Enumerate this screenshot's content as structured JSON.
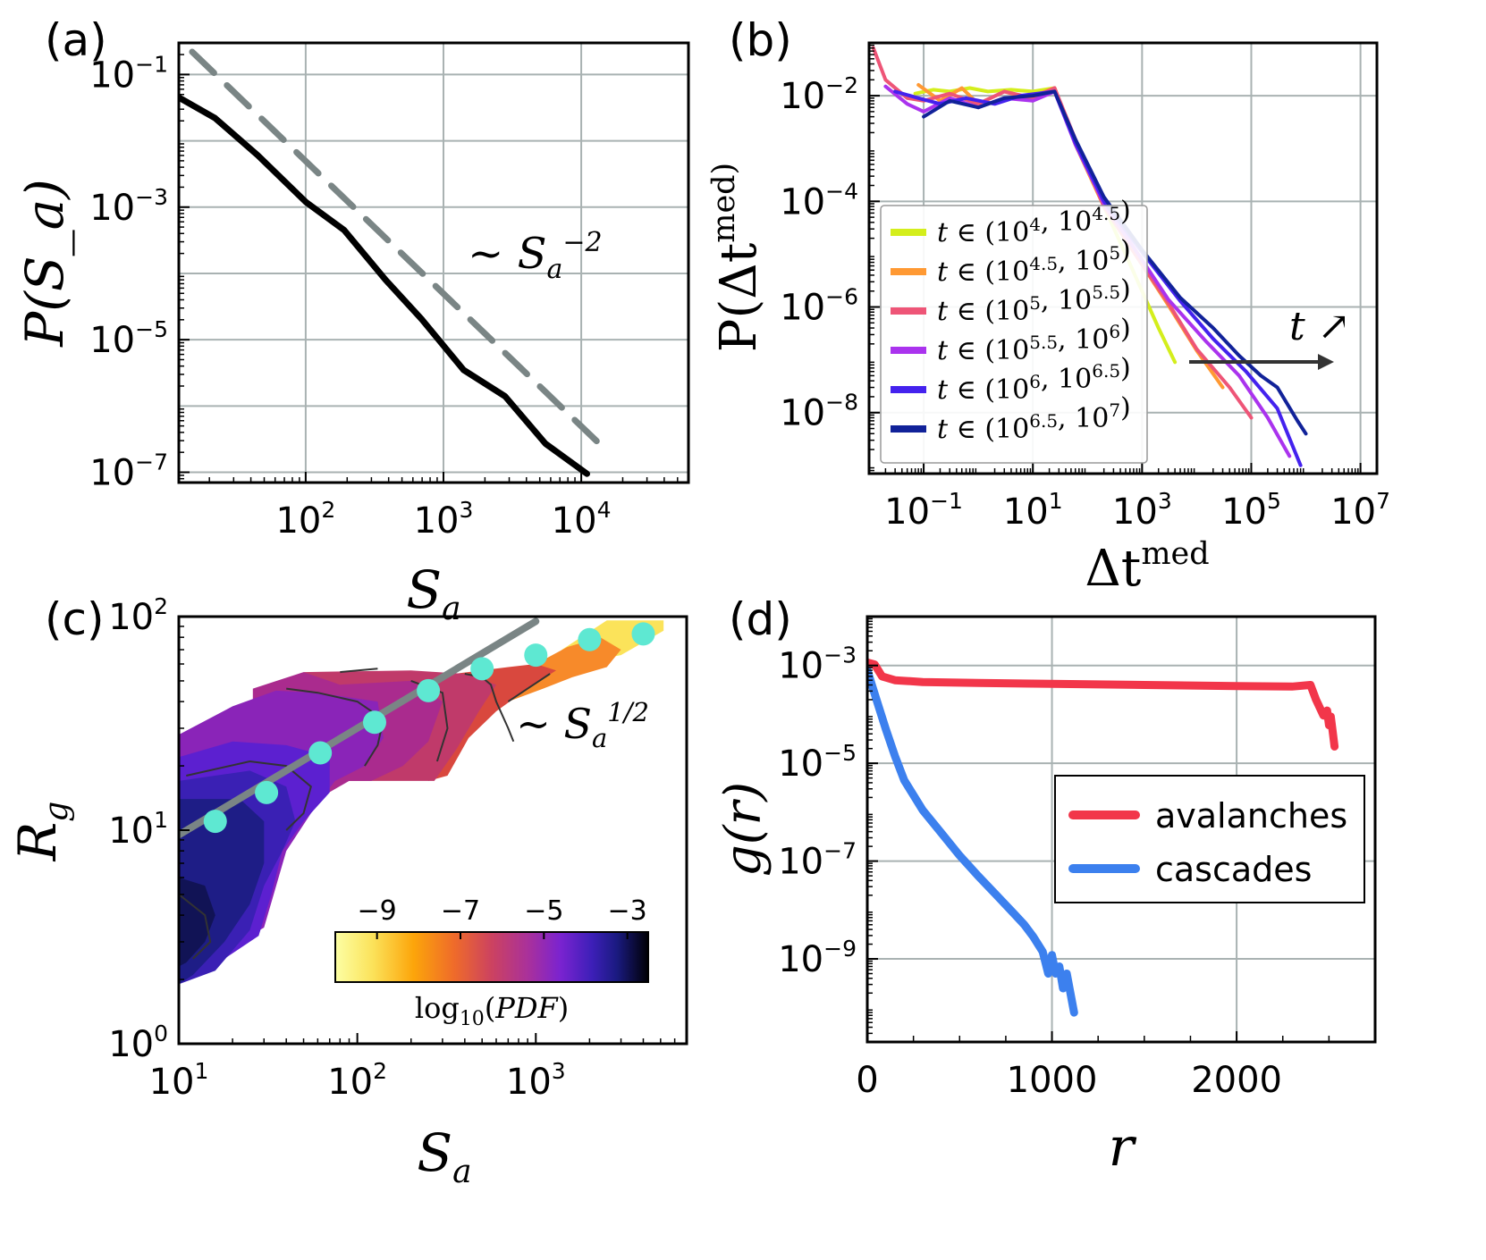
{
  "figure": {
    "panel_labels": [
      "(a)",
      "(b)",
      "(c)",
      "(d)"
    ]
  },
  "chart_data": [
    {
      "panel": "(a)",
      "type": "line",
      "scale": "log-log",
      "xlabel": "S_a",
      "ylabel": "P(S_a)",
      "xlim": [
        12,
        60000
      ],
      "ylim": [
        7e-08,
        0.3
      ],
      "xticks": [
        100,
        1000,
        10000
      ],
      "xtick_labels": [
        "10^2",
        "10^3",
        "10^4"
      ],
      "yticks": [
        0.1,
        0.001,
        1e-05,
        1e-07
      ],
      "ytick_labels": [
        "10^-1",
        "10^-3",
        "10^-5",
        "10^-7"
      ],
      "grid": true,
      "series": [
        {
          "name": "P(S_a)",
          "color": "#000000",
          "style": "solid",
          "x": [
            12,
            22,
            45,
            100,
            190,
            380,
            700,
            1400,
            2800,
            5500,
            11000
          ],
          "y": [
            0.045,
            0.022,
            0.006,
            0.0012,
            0.00045,
            8e-05,
            2e-05,
            3.5e-06,
            1.4e-06,
            2.7e-07,
            9.5e-08
          ]
        },
        {
          "name": "S_a^-2 guide",
          "color": "#7a8585",
          "style": "dashed",
          "x": [
            15,
            15000
          ],
          "y": [
            0.22,
            2.2e-07
          ]
        }
      ],
      "annotations": [
        {
          "text": "~ S_a^-2",
          "x": 1500,
          "y": 0.00012
        }
      ]
    },
    {
      "panel": "(b)",
      "type": "line",
      "scale": "log-log",
      "xlabel": "Δt^med",
      "ylabel": "P(Δt^med)",
      "xlim": [
        0.01,
        20000000
      ],
      "ylim": [
        7e-10,
        0.1
      ],
      "xticks": [
        0.1,
        10,
        1000,
        100000,
        10000000
      ],
      "xtick_labels": [
        "10^-1",
        "10^1",
        "10^3",
        "10^5",
        "10^7"
      ],
      "yticks": [
        0.01,
        0.0001,
        1e-06,
        1e-08
      ],
      "ytick_labels": [
        "10^-2",
        "10^-4",
        "10^-6",
        "10^-8"
      ],
      "grid": true,
      "legend": {
        "position": "center-left",
        "entries": [
          {
            "lo": "10^4",
            "hi": "10^4.5",
            "color": "#d4ee1c"
          },
          {
            "lo": "10^4.5",
            "hi": "10^5",
            "color": "#ff9933"
          },
          {
            "lo": "10^5",
            "hi": "10^5.5",
            "color": "#ee5577"
          },
          {
            "lo": "10^5.5",
            "hi": "10^6",
            "color": "#aa33ee"
          },
          {
            "lo": "10^6",
            "hi": "10^6.5",
            "color": "#4422ee"
          },
          {
            "lo": "10^6.5",
            "hi": "10^7",
            "color": "#112299"
          }
        ]
      },
      "series": [
        {
          "name": "t ∈ (10^4, 10^4.5)",
          "color": "#d4ee1c",
          "x": [
            0.07,
            0.15,
            0.3,
            0.7,
            1.5,
            4,
            10,
            25,
            60,
            200,
            600,
            2000,
            4000
          ],
          "y": [
            0.011,
            0.013,
            0.012,
            0.014,
            0.012,
            0.013,
            0.012,
            0.014,
            0.0012,
            8e-05,
            6.5e-06,
            4e-07,
            9e-08
          ]
        },
        {
          "name": "t ∈ (10^4.5, 10^5)",
          "color": "#ff9933",
          "x": [
            0.08,
            0.2,
            0.5,
            1,
            3,
            8,
            25,
            60,
            200,
            800,
            3000,
            10000,
            30000
          ],
          "y": [
            0.016,
            0.008,
            0.014,
            0.007,
            0.012,
            0.009,
            0.014,
            0.0012,
            8e-05,
            9e-06,
            1.1e-06,
            1.5e-07,
            3e-08
          ]
        },
        {
          "name": "t ∈ (10^5, 10^5.5)",
          "color": "#ee5577",
          "x": [
            0.012,
            0.02,
            0.05,
            0.1,
            0.3,
            1,
            3,
            10,
            25,
            60,
            200,
            800,
            3000,
            10000,
            40000,
            100000
          ],
          "y": [
            0.08,
            0.02,
            0.009,
            0.008,
            0.011,
            0.007,
            0.012,
            0.009,
            0.014,
            0.0015,
            8e-05,
            9e-06,
            1.2e-06,
            1.6e-07,
            3e-08,
            8e-09
          ]
        },
        {
          "name": "t ∈ (10^5.5, 10^6)",
          "color": "#aa33ee",
          "x": [
            0.02,
            0.05,
            0.1,
            0.3,
            1,
            3,
            10,
            25,
            60,
            200,
            800,
            3000,
            15000,
            60000,
            200000,
            500000
          ],
          "y": [
            0.015,
            0.007,
            0.005,
            0.009,
            0.006,
            0.009,
            0.008,
            0.012,
            0.0012,
            9e-05,
            1.1e-05,
            1.4e-06,
            2.2e-07,
            5e-08,
            8e-09,
            1.5e-09
          ]
        },
        {
          "name": "t ∈ (10^6, 10^6.5)",
          "color": "#4422ee",
          "x": [
            0.03,
            0.08,
            0.2,
            0.6,
            2,
            6,
            25,
            60,
            200,
            1000,
            5000,
            20000,
            80000,
            300000,
            800000
          ],
          "y": [
            0.012,
            0.009,
            0.007,
            0.009,
            0.007,
            0.01,
            0.012,
            0.0013,
            0.0001,
            1.1e-05,
            1.3e-06,
            2.5e-07,
            6e-08,
            1.2e-08,
            1e-09
          ]
        },
        {
          "name": "t ∈ (10^6.5, 10^7)",
          "color": "#112299",
          "x": [
            0.1,
            0.3,
            1,
            3,
            10,
            25,
            60,
            200,
            1000,
            5000,
            20000,
            60000,
            150000,
            300000,
            700000,
            1000000
          ],
          "y": [
            0.004,
            0.008,
            0.006,
            0.009,
            0.01,
            0.012,
            0.0015,
            0.00012,
            1.2e-05,
            1.5e-06,
            4e-07,
            1.2e-07,
            5e-08,
            3e-08,
            7e-09,
            4e-09
          ]
        }
      ],
      "annotations": [
        {
          "text": "t ↗",
          "x": 800000,
          "y": 8e-07
        }
      ]
    },
    {
      "panel": "(c)",
      "type": "heatmap",
      "scale": "log-log",
      "xlabel": "S_a",
      "ylabel": "R_g",
      "xlim": [
        10,
        7000
      ],
      "ylim": [
        1,
        100
      ],
      "xticks": [
        10,
        100,
        1000
      ],
      "xtick_labels": [
        "10^1",
        "10^2",
        "10^3"
      ],
      "yticks": [
        1,
        10,
        100
      ],
      "ytick_labels": [
        "10^0",
        "10^1",
        "10^2"
      ],
      "grid": false,
      "colorbar": {
        "label": "log10(PDF)",
        "range": [
          -10,
          -2.5
        ],
        "ticks": [
          -9,
          -7,
          -5,
          -3
        ],
        "tick_labels": [
          "−9",
          "−7",
          "−5",
          "−3"
        ],
        "colormap": "inferno_r"
      },
      "points": {
        "color": "#5ee8d2",
        "x": [
          16,
          31,
          62,
          125,
          250,
          500,
          1000,
          2000,
          4000
        ],
        "y": [
          11,
          15,
          23,
          32,
          45,
          57,
          66,
          78,
          83
        ]
      },
      "fit_line": {
        "color": "#7a8585",
        "x": [
          10,
          1000
        ],
        "y": [
          9.5,
          95
        ]
      },
      "annotations": [
        {
          "text": "~ S_a^1/2",
          "x": 1000,
          "y": 27
        }
      ]
    },
    {
      "panel": "(d)",
      "type": "line",
      "scale": "lin-log",
      "xlabel": "r",
      "ylabel": "g(r)",
      "xlim": [
        0,
        2750
      ],
      "ylim": [
        2e-11,
        0.01
      ],
      "xticks": [
        0,
        1000,
        2000
      ],
      "xtick_labels": [
        "0",
        "1000",
        "2000"
      ],
      "yticks": [
        0.001,
        1e-05,
        1e-07,
        1e-09
      ],
      "ytick_labels": [
        "10^-3",
        "10^-5",
        "10^-7",
        "10^-9"
      ],
      "grid": true,
      "legend": {
        "position": "center-right",
        "entries": [
          "avalanches",
          "cascades"
        ]
      },
      "series": [
        {
          "name": "avalanches",
          "color": "#f2364a",
          "x": [
            0,
            40,
            80,
            150,
            300,
            600,
            1000,
            1500,
            2000,
            2300,
            2400,
            2430,
            2470,
            2490,
            2500,
            2510,
            2520,
            2530
          ],
          "y": [
            0.00115,
            0.00105,
            0.0006,
            0.0005,
            0.00046,
            0.00044,
            0.00042,
            0.0004,
            0.00038,
            0.00037,
            0.0004,
            0.0002,
            9.5e-05,
            0.00012,
            6e-05,
            9e-05,
            4.5e-05,
            2.2e-05
          ]
        },
        {
          "name": "cascades",
          "color": "#3c80ee",
          "x": [
            0,
            50,
            100,
            150,
            200,
            300,
            400,
            500,
            600,
            700,
            800,
            850,
            900,
            950,
            980,
            1000,
            1020,
            1040,
            1060,
            1080,
            1100,
            1120
          ],
          "y": [
            0.0008,
            0.0002,
            5e-05,
            1.4e-05,
            4.5e-06,
            1.1e-06,
            3.8e-07,
            1.3e-07,
            5e-08,
            2e-08,
            8e-09,
            5e-09,
            2.8e-09,
            1.4e-09,
            5e-10,
            1.2e-09,
            5e-10,
            7e-10,
            2.5e-10,
            5e-10,
            2e-10,
            8e-11
          ]
        }
      ]
    }
  ]
}
